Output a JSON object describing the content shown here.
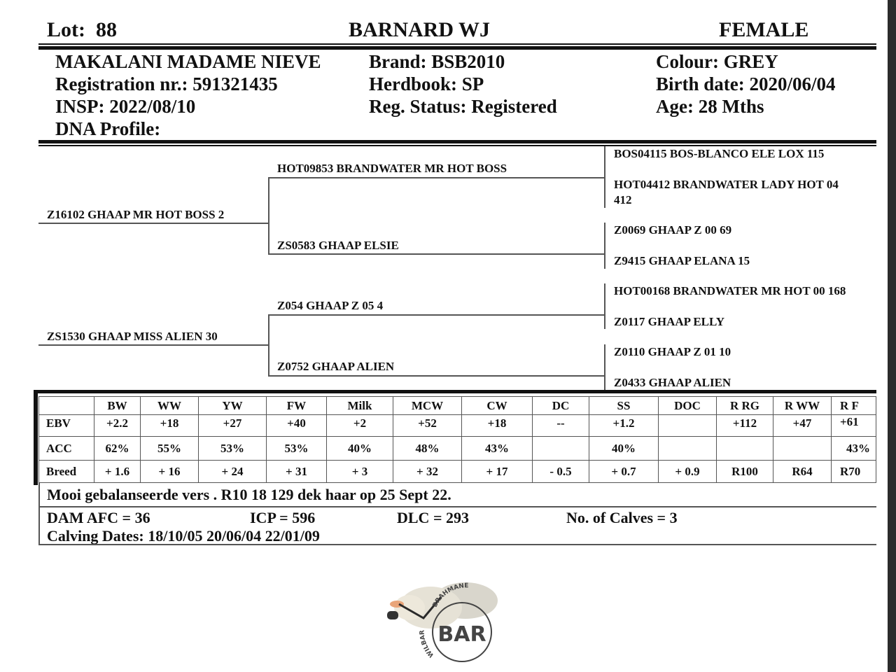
{
  "header": {
    "lot_label": "Lot:",
    "lot_number": "88",
    "breeder": "BARNARD WJ",
    "sex": "FEMALE"
  },
  "animal": {
    "name": "MAKALANI MADAME NIEVE",
    "registration": "Registration nr.: 591321435",
    "insp": "INSP: 2022/08/10",
    "dna": "DNA Profile:",
    "brand": "Brand:  BSB2010",
    "herdbook": "Herdbook: SP",
    "reg_status": "Reg. Status: Registered",
    "colour": "Colour:  GREY",
    "birth_date": "Birth date:  2020/06/04",
    "age": "Age: 28 Mths"
  },
  "pedigree": {
    "sire": "Z16102 GHAAP MR HOT BOSS 2",
    "dam": "ZS1530 GHAAP MISS ALIEN 30",
    "sire_sire": "HOT09853 BRANDWATER MR HOT BOSS",
    "sire_dam": "ZS0583 GHAAP ELSIE",
    "dam_sire": "Z054 GHAAP Z 05 4",
    "dam_dam": "Z0752 GHAAP ALIEN",
    "ggp": [
      "BOS04115 BOS-BLANCO ELE LOX 115",
      "HOT04412 BRANDWATER LADY HOT 04",
      "412",
      "Z0069 GHAAP Z 00 69",
      "Z9415 GHAAP ELANA 15",
      "HOT00168 BRANDWATER MR HOT 00 168",
      "Z0117 GHAAP ELLY",
      "Z0110 GHAAP Z 01 10",
      "Z0433 GHAAP ALIEN"
    ]
  },
  "ebv_table": {
    "columns": [
      "",
      "BW",
      "WW",
      "YW",
      "FW",
      "Milk",
      "MCW",
      "CW",
      "DC",
      "SS",
      "DOC",
      "R RG",
      "R WW",
      "R F"
    ],
    "rows": [
      [
        "EBV",
        "+2.2",
        "+18",
        "+27",
        "+40",
        "+2",
        "+52",
        "+18",
        "--",
        "+1.2",
        "",
        "+112",
        "+47",
        "+61"
      ],
      [
        "ACC",
        "62%",
        "55%",
        "53%",
        "53%",
        "40%",
        "48%",
        "43%",
        "",
        "40%",
        "",
        "",
        "",
        "43%"
      ],
      [
        "Breed",
        "+ 1.6",
        "+ 16",
        "+ 24",
        "+ 31",
        "+ 3",
        "+ 32",
        "+ 17",
        "- 0.5",
        "+ 0.7",
        "+ 0.9",
        "R100",
        "R64",
        "R70"
      ]
    ]
  },
  "comment": "Mooi gebalanseerde vers . R10 18 129 dek haar op 25 Sept 22.",
  "dam_stats": {
    "afc": "DAM AFC = 36",
    "icp": "ICP = 596",
    "dlc": "DLC = 293",
    "calves": "No. of Calves = 3",
    "calving_dates": "Calving Dates: 18/10/05  20/06/04  22/01/09"
  },
  "logo": {
    "main": "BAR",
    "arc_top": "BRAHMANE",
    "arc_left": "WILBAR"
  }
}
